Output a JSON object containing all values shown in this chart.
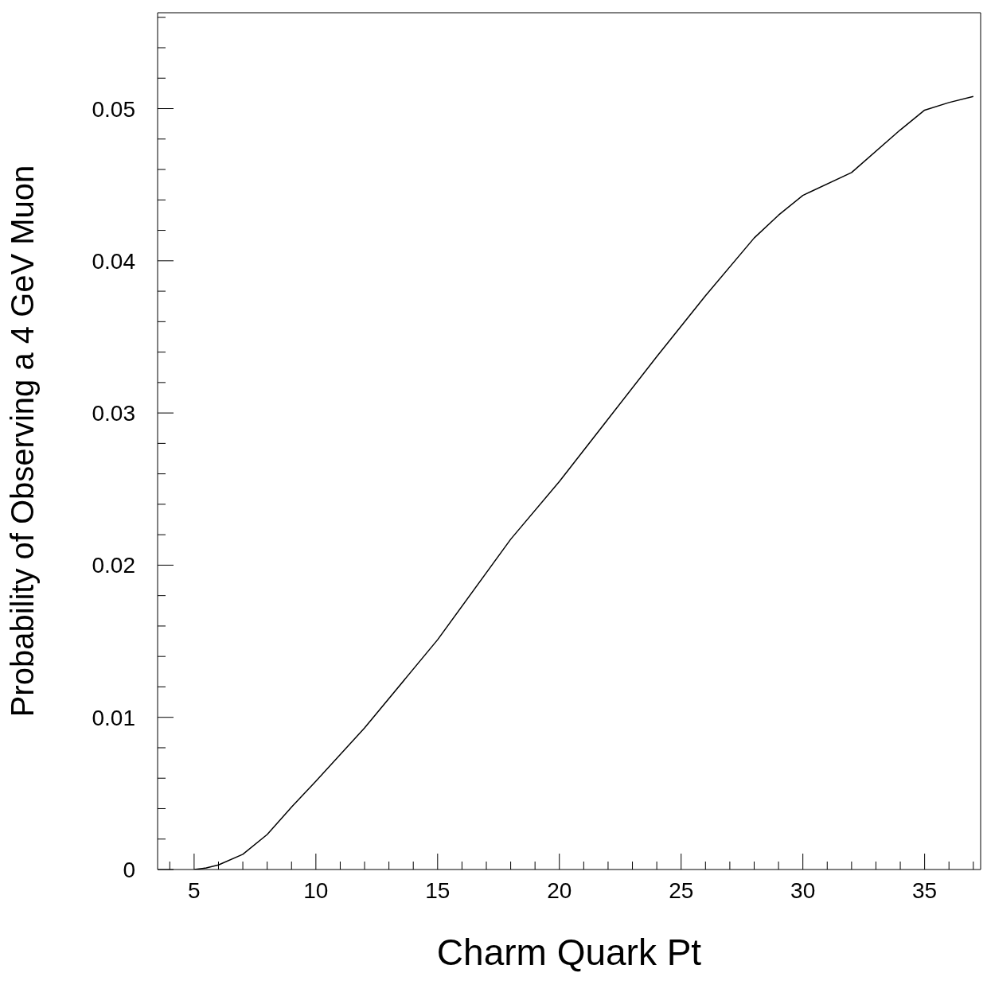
{
  "chart_data": {
    "type": "line",
    "xlabel": "Charm Quark Pt",
    "ylabel": "Probability of Observing a 4 GeV Muon",
    "x": [
      5,
      5.5,
      6,
      7,
      8,
      9,
      10,
      12,
      15,
      18,
      20,
      22,
      24,
      26,
      28,
      29,
      30,
      32,
      34,
      35,
      36,
      37
    ],
    "series": [
      {
        "color": "#000000",
        "values": [
          0,
          0.0001,
          0.0003,
          0.001,
          0.0023,
          0.0041,
          0.0058,
          0.0093,
          0.0151,
          0.0217,
          0.0255,
          0.0296,
          0.0337,
          0.0377,
          0.0415,
          0.043,
          0.0443,
          0.0458,
          0.0486,
          0.0499,
          0.0504,
          0.0508
        ]
      }
    ],
    "xlim": [
      3.5,
      37.3
    ],
    "ylim": [
      0,
      0.0563
    ],
    "xticks": [
      {
        "value": 4,
        "label": null
      },
      5,
      {
        "value": 6,
        "label": null
      },
      {
        "value": 7,
        "label": null
      },
      {
        "value": 8,
        "label": null
      },
      {
        "value": 9,
        "label": null
      },
      10,
      {
        "value": 11,
        "label": null
      },
      {
        "value": 12,
        "label": null
      },
      {
        "value": 13,
        "label": null
      },
      {
        "value": 14,
        "label": null
      },
      15,
      {
        "value": 16,
        "label": null
      },
      {
        "value": 17,
        "label": null
      },
      {
        "value": 18,
        "label": null
      },
      {
        "value": 19,
        "label": null
      },
      20,
      {
        "value": 21,
        "label": null
      },
      {
        "value": 22,
        "label": null
      },
      {
        "value": 23,
        "label": null
      },
      {
        "value": 24,
        "label": null
      },
      25,
      {
        "value": 26,
        "label": null
      },
      {
        "value": 27,
        "label": null
      },
      {
        "value": 28,
        "label": null
      },
      {
        "value": 29,
        "label": null
      },
      30,
      {
        "value": 31,
        "label": null
      },
      {
        "value": 32,
        "label": null
      },
      {
        "value": 33,
        "label": null
      },
      {
        "value": 34,
        "label": null
      },
      35,
      {
        "value": 36,
        "label": null
      },
      {
        "value": 37,
        "label": null
      }
    ],
    "yticks": [
      0,
      {
        "value": 0.002,
        "label": null
      },
      {
        "value": 0.004,
        "label": null
      },
      {
        "value": 0.006,
        "label": null
      },
      {
        "value": 0.008,
        "label": null
      },
      0.01,
      {
        "value": 0.012,
        "label": null
      },
      {
        "value": 0.014,
        "label": null
      },
      {
        "value": 0.016,
        "label": null
      },
      {
        "value": 0.018,
        "label": null
      },
      0.02,
      {
        "value": 0.022,
        "label": null
      },
      {
        "value": 0.024,
        "label": null
      },
      {
        "value": 0.026,
        "label": null
      },
      {
        "value": 0.028,
        "label": null
      },
      0.03,
      {
        "value": 0.032,
        "label": null
      },
      {
        "value": 0.034,
        "label": null
      },
      {
        "value": 0.036,
        "label": null
      },
      {
        "value": 0.038,
        "label": null
      },
      0.04,
      {
        "value": 0.042,
        "label": null
      },
      {
        "value": 0.044,
        "label": null
      },
      {
        "value": 0.046,
        "label": null
      },
      {
        "value": 0.048,
        "label": null
      },
      0.05,
      {
        "value": 0.052,
        "label": null
      },
      {
        "value": 0.054,
        "label": null
      },
      {
        "value": 0.056,
        "label": null
      }
    ],
    "grid": false,
    "legend": false,
    "marker": "none",
    "line_style": "solid"
  }
}
